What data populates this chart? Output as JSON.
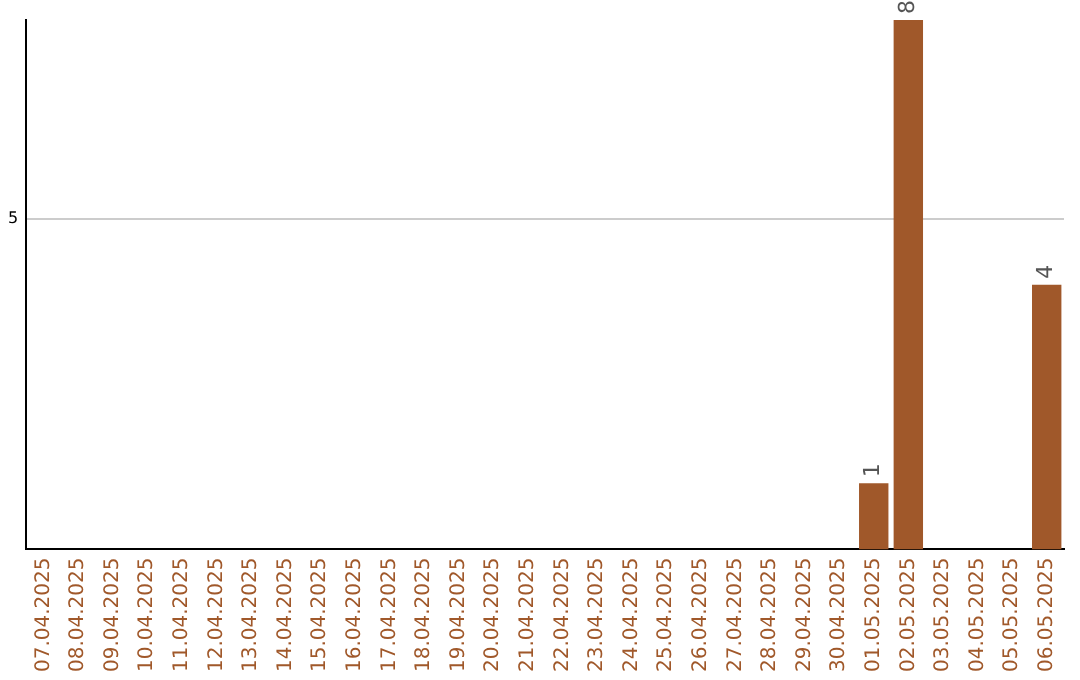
{
  "chart_data": {
    "type": "bar",
    "categories": [
      "07.04.2025",
      "08.04.2025",
      "09.04.2025",
      "10.04.2025",
      "11.04.2025",
      "12.04.2025",
      "13.04.2025",
      "14.04.2025",
      "15.04.2025",
      "16.04.2025",
      "17.04.2025",
      "18.04.2025",
      "19.04.2025",
      "20.04.2025",
      "21.04.2025",
      "22.04.2025",
      "23.04.2025",
      "24.04.2025",
      "25.04.2025",
      "26.04.2025",
      "27.04.2025",
      "28.04.2025",
      "29.04.2025",
      "30.04.2025",
      "01.05.2025",
      "02.05.2025",
      "03.05.2025",
      "04.05.2025",
      "05.05.2025",
      "06.05.2025"
    ],
    "values": [
      null,
      null,
      null,
      null,
      null,
      null,
      null,
      null,
      null,
      null,
      null,
      null,
      null,
      null,
      null,
      null,
      null,
      null,
      null,
      null,
      null,
      null,
      null,
      null,
      1,
      8,
      null,
      null,
      null,
      4
    ],
    "color": "#a0582a",
    "ylim": [
      0,
      8
    ],
    "yticks": [
      5
    ],
    "grid": "y",
    "data_labels": true,
    "legend": false
  }
}
